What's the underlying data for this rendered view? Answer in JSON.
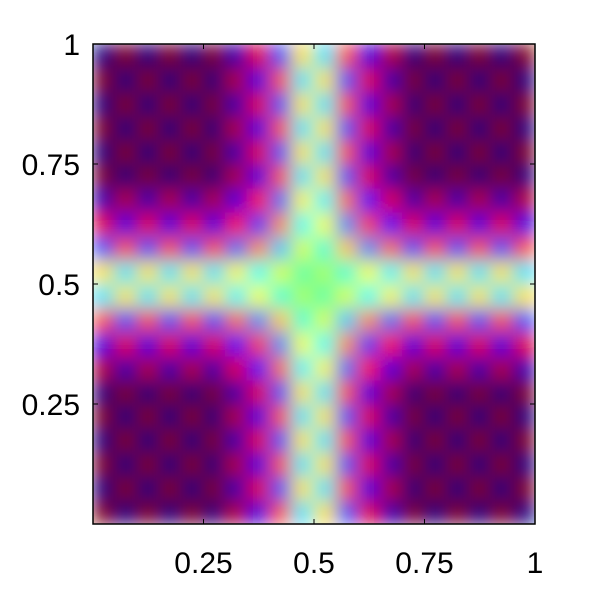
{
  "chart_data": {
    "type": "heatmap",
    "colormap": "jet",
    "zlim": [
      -1,
      1
    ],
    "xlim": [
      0,
      1
    ],
    "ylim": [
      0,
      1
    ],
    "xticks": [
      0.25,
      0.5,
      0.75,
      1
    ],
    "yticks": [
      0.25,
      0.5,
      0.75,
      1
    ],
    "x": [
      0.025,
      0.075,
      0.125,
      0.175,
      0.225,
      0.275,
      0.325,
      0.375,
      0.425,
      0.475,
      0.525,
      0.575,
      0.625,
      0.675,
      0.725,
      0.775,
      0.825,
      0.875,
      0.925,
      0.975
    ],
    "y": [
      0.025,
      0.075,
      0.125,
      0.175,
      0.225,
      0.275,
      0.325,
      0.375,
      0.425,
      0.475,
      0.525,
      0.575,
      0.625,
      0.675,
      0.725,
      0.775,
      0.825,
      0.875,
      0.925,
      0.975
    ],
    "z": [
      [
        1,
        -1,
        1,
        -1,
        1,
        -1,
        0.9,
        -0.8,
        0.6,
        -0.3,
        0.3,
        -0.6,
        0.8,
        -0.9,
        1,
        -1,
        1,
        -1,
        1,
        -1
      ],
      [
        -1,
        1,
        -1,
        1,
        -1,
        1,
        -0.9,
        0.8,
        -0.6,
        0.3,
        -0.3,
        0.6,
        -0.8,
        0.9,
        -1,
        1,
        -1,
        1,
        -1,
        1
      ],
      [
        1,
        -1,
        1,
        -1,
        1,
        -1,
        0.9,
        -0.8,
        0.6,
        -0.3,
        0.3,
        -0.6,
        0.8,
        -0.9,
        1,
        -1,
        1,
        -1,
        1,
        -1
      ],
      [
        -1,
        1,
        -1,
        1,
        -1,
        1,
        -0.9,
        0.8,
        -0.6,
        0.3,
        -0.3,
        0.6,
        -0.8,
        0.9,
        -1,
        1,
        -1,
        1,
        -1,
        1
      ],
      [
        1,
        -1,
        1,
        -1,
        1,
        -1,
        0.9,
        -0.8,
        0.6,
        -0.3,
        0.3,
        -0.6,
        0.8,
        -0.9,
        1,
        -1,
        1,
        -1,
        1,
        -1
      ],
      [
        -1,
        1,
        -1,
        1,
        -1,
        1,
        -0.9,
        0.8,
        -0.6,
        0.3,
        -0.3,
        0.6,
        -0.8,
        0.9,
        -1,
        1,
        -1,
        1,
        -1,
        1
      ],
      [
        0.9,
        -0.9,
        0.9,
        -0.9,
        0.9,
        -0.9,
        0.81,
        -0.72,
        0.54,
        -0.27,
        0.27,
        -0.54,
        0.72,
        -0.81,
        0.9,
        -0.9,
        0.9,
        -0.9,
        0.9,
        -0.9
      ],
      [
        -0.8,
        0.8,
        -0.8,
        0.8,
        -0.8,
        0.8,
        -0.72,
        0.64,
        -0.48,
        0.24,
        -0.24,
        0.48,
        -0.64,
        0.72,
        -0.8,
        0.8,
        -0.8,
        0.8,
        -0.8,
        0.8
      ],
      [
        0.6,
        -0.6,
        0.6,
        -0.6,
        0.6,
        -0.6,
        0.54,
        -0.48,
        0.36,
        -0.18,
        0.18,
        -0.36,
        0.48,
        -0.54,
        0.6,
        -0.6,
        0.6,
        -0.6,
        0.6,
        -0.6
      ],
      [
        -0.3,
        0.3,
        -0.3,
        0.3,
        -0.3,
        0.3,
        -0.27,
        0.24,
        -0.18,
        0.09,
        -0.09,
        0.18,
        -0.24,
        0.27,
        -0.3,
        0.3,
        -0.3,
        0.3,
        -0.3,
        0.3
      ],
      [
        0.3,
        -0.3,
        0.3,
        -0.3,
        0.3,
        -0.3,
        0.27,
        -0.24,
        0.18,
        -0.09,
        0.09,
        -0.18,
        0.24,
        -0.27,
        0.3,
        -0.3,
        0.3,
        -0.3,
        0.3,
        -0.3
      ],
      [
        -0.6,
        0.6,
        -0.6,
        0.6,
        -0.6,
        0.6,
        -0.54,
        0.48,
        -0.36,
        0.18,
        -0.18,
        0.36,
        -0.48,
        0.54,
        -0.6,
        0.6,
        -0.6,
        0.6,
        -0.6,
        0.6
      ],
      [
        0.8,
        -0.8,
        0.8,
        -0.8,
        0.8,
        -0.8,
        0.72,
        -0.64,
        0.48,
        -0.24,
        0.24,
        -0.48,
        0.64,
        -0.72,
        0.8,
        -0.8,
        0.8,
        -0.8,
        0.8,
        -0.8
      ],
      [
        -0.9,
        0.9,
        -0.9,
        0.9,
        -0.9,
        0.9,
        -0.81,
        0.72,
        -0.54,
        0.27,
        -0.27,
        0.54,
        -0.72,
        0.81,
        -0.9,
        0.9,
        -0.9,
        0.9,
        -0.9,
        0.9
      ],
      [
        1,
        -1,
        1,
        -1,
        1,
        -1,
        0.9,
        -0.8,
        0.6,
        -0.3,
        0.3,
        -0.6,
        0.8,
        -0.9,
        1,
        -1,
        1,
        -1,
        1,
        -1
      ],
      [
        -1,
        1,
        -1,
        1,
        -1,
        1,
        -0.9,
        0.8,
        -0.6,
        0.3,
        -0.3,
        0.6,
        -0.8,
        0.9,
        -1,
        1,
        -1,
        1,
        -1,
        1
      ],
      [
        1,
        -1,
        1,
        -1,
        1,
        -1,
        0.9,
        -0.8,
        0.6,
        -0.3,
        0.3,
        -0.6,
        0.8,
        -0.9,
        1,
        -1,
        1,
        -1,
        1,
        -1
      ],
      [
        -1,
        1,
        -1,
        1,
        -1,
        1,
        -0.9,
        0.8,
        -0.6,
        0.3,
        -0.3,
        0.6,
        -0.8,
        0.9,
        -1,
        1,
        -1,
        1,
        -1,
        1
      ],
      [
        1,
        -1,
        1,
        -1,
        1,
        -1,
        0.9,
        -0.8,
        0.6,
        -0.3,
        0.3,
        -0.6,
        0.8,
        -0.9,
        1,
        -1,
        1,
        -1,
        1,
        -1
      ],
      [
        -1,
        1,
        -1,
        1,
        -1,
        1,
        -0.9,
        0.8,
        -0.6,
        0.3,
        -0.3,
        0.6,
        -0.8,
        0.9,
        -1,
        1,
        -1,
        1,
        -1,
        1
      ]
    ]
  }
}
